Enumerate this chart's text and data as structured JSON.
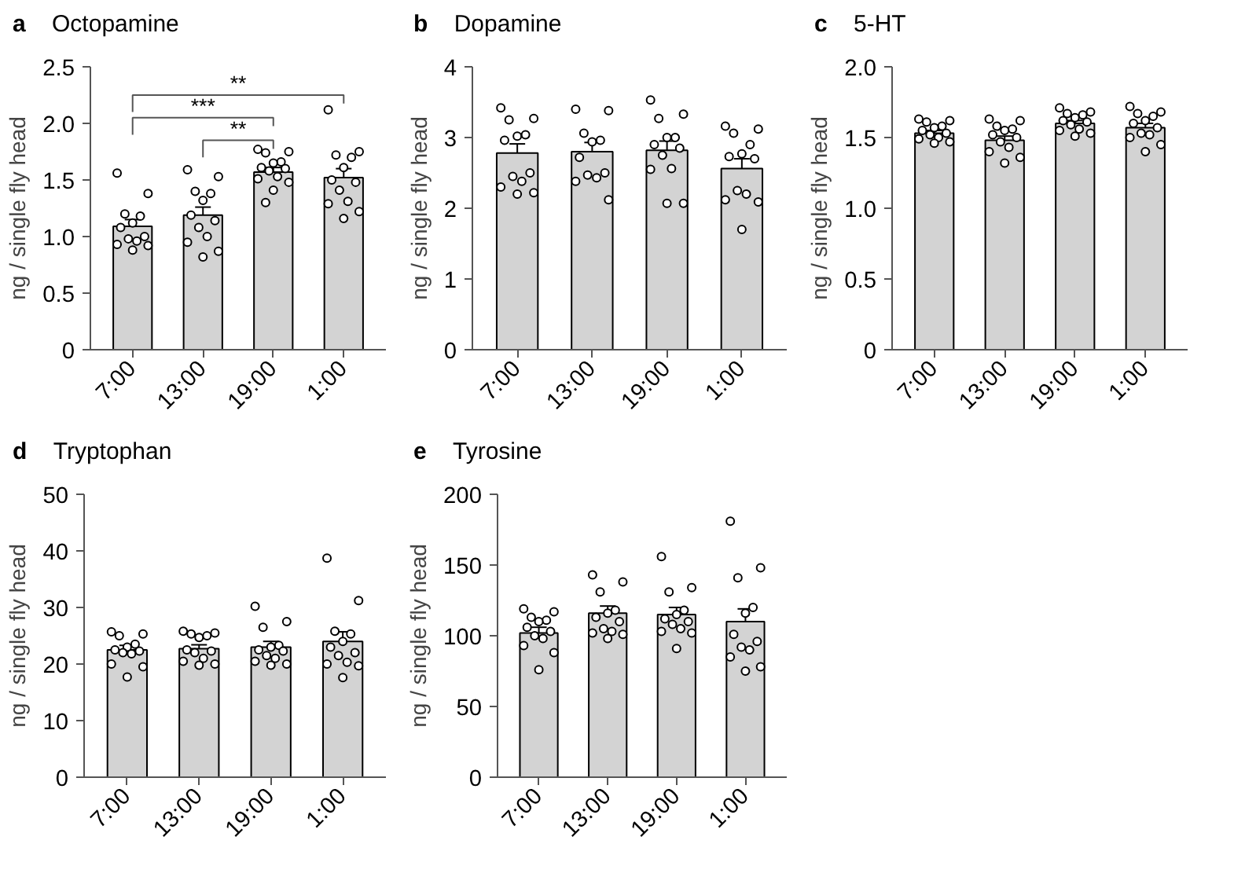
{
  "chart_data": [
    {
      "type": "bar",
      "title": "a",
      "subtitle": "Octopamine",
      "ylabel": "ng / single fly head",
      "categories": [
        "7:00",
        "13:00",
        "19:00",
        "1:00"
      ],
      "ylim": [
        0,
        2.5
      ],
      "yticks": [
        0,
        {
          "value": 0.5,
          "label": "0.5"
        },
        {
          "value": 1,
          "label": "1.0"
        },
        {
          "value": 1.5,
          "label": "1.5"
        },
        {
          "value": 2,
          "label": "2.0"
        },
        {
          "value": 2.5,
          "label": "2.5"
        }
      ],
      "grid": false,
      "annotations": [
        "**",
        "***",
        "**"
      ],
      "series": [
        {
          "color": "#d3d3d3",
          "values": [
            1.09,
            1.19,
            1.57,
            1.52
          ],
          "errors": [
            0.06,
            0.07,
            0.04,
            0.08
          ]
        },
        {
          "type": "scatter",
          "marker": "circle",
          "color": "#000000",
          "x": [
            "7:00",
            "7:00",
            "7:00",
            "7:00",
            "7:00",
            "7:00",
            "7:00",
            "7:00",
            "7:00",
            "7:00",
            "7:00",
            "7:00",
            "13:00",
            "13:00",
            "13:00",
            "13:00",
            "13:00",
            "13:00",
            "13:00",
            "13:00",
            "13:00",
            "13:00",
            "13:00",
            "13:00",
            "19:00",
            "19:00",
            "19:00",
            "19:00",
            "19:00",
            "19:00",
            "19:00",
            "19:00",
            "19:00",
            "19:00",
            "19:00",
            "19:00",
            "19:00",
            "1:00",
            "1:00",
            "1:00",
            "1:00",
            "1:00",
            "1:00",
            "1:00",
            "1:00",
            "1:00",
            "1:00",
            "1:00",
            "1:00"
          ],
          "values": [
            1.56,
            1.38,
            1.2,
            1.18,
            1.12,
            1.08,
            1.0,
            0.98,
            0.96,
            0.93,
            0.92,
            0.88,
            1.59,
            1.53,
            1.4,
            1.38,
            1.32,
            1.19,
            1.14,
            1.08,
            1.0,
            0.95,
            0.87,
            0.82,
            1.77,
            1.75,
            1.74,
            1.66,
            1.65,
            1.61,
            1.6,
            1.58,
            1.53,
            1.51,
            1.48,
            1.41,
            1.3,
            2.12,
            1.75,
            1.72,
            1.7,
            1.61,
            1.5,
            1.48,
            1.41,
            1.31,
            1.29,
            1.22,
            1.16
          ]
        }
      ]
    },
    {
      "type": "bar",
      "title": "b",
      "subtitle": "Dopamine",
      "ylabel": "ng / single fly head",
      "categories": [
        "7:00",
        "13:00",
        "19:00",
        "1:00"
      ],
      "ylim": [
        0,
        4
      ],
      "yticks": [
        0,
        1,
        2,
        3,
        4
      ],
      "grid": false,
      "series": [
        {
          "color": "#d3d3d3",
          "values": [
            2.78,
            2.8,
            2.82,
            2.56
          ],
          "errors": [
            0.13,
            0.13,
            0.13,
            0.14
          ]
        },
        {
          "type": "scatter",
          "marker": "circle",
          "color": "#000000",
          "x": [
            "7:00",
            "7:00",
            "7:00",
            "7:00",
            "7:00",
            "7:00",
            "7:00",
            "7:00",
            "7:00",
            "7:00",
            "7:00",
            "7:00",
            "13:00",
            "13:00",
            "13:00",
            "13:00",
            "13:00",
            "13:00",
            "13:00",
            "13:00",
            "13:00",
            "13:00",
            "13:00",
            "19:00",
            "19:00",
            "19:00",
            "19:00",
            "19:00",
            "19:00",
            "19:00",
            "19:00",
            "19:00",
            "19:00",
            "19:00",
            "19:00",
            "1:00",
            "1:00",
            "1:00",
            "1:00",
            "1:00",
            "1:00",
            "1:00",
            "1:00",
            "1:00",
            "1:00",
            "1:00",
            "1:00"
          ],
          "values": [
            3.42,
            3.27,
            3.25,
            3.04,
            3.02,
            2.96,
            2.5,
            2.45,
            2.38,
            2.3,
            2.22,
            2.2,
            3.4,
            3.38,
            3.06,
            2.96,
            2.94,
            2.72,
            2.5,
            2.47,
            2.43,
            2.38,
            2.12,
            3.53,
            3.33,
            3.27,
            3.0,
            3.0,
            2.9,
            2.85,
            2.75,
            2.56,
            2.55,
            2.07,
            2.07,
            3.16,
            3.12,
            3.06,
            2.9,
            2.77,
            2.73,
            2.7,
            2.25,
            2.2,
            2.12,
            2.09,
            1.7
          ]
        }
      ]
    },
    {
      "type": "bar",
      "title": "c",
      "subtitle": "5-HT",
      "ylabel": "ng / single fly head",
      "categories": [
        "7:00",
        "13:00",
        "19:00",
        "1:00"
      ],
      "ylim": [
        0,
        2
      ],
      "yticks": [
        0,
        {
          "value": 0.5,
          "label": "0.5"
        },
        {
          "value": 1,
          "label": "1.0"
        },
        {
          "value": 1.5,
          "label": "1.5"
        },
        {
          "value": 2,
          "label": "2.0"
        }
      ],
      "grid": false,
      "series": [
        {
          "color": "#d3d3d3",
          "values": [
            1.53,
            1.48,
            1.6,
            1.57
          ],
          "errors": [
            0.02,
            0.03,
            0.02,
            0.03
          ]
        },
        {
          "type": "scatter",
          "marker": "circle",
          "color": "#000000",
          "x": [
            "7:00",
            "7:00",
            "7:00",
            "7:00",
            "7:00",
            "7:00",
            "7:00",
            "7:00",
            "7:00",
            "7:00",
            "7:00",
            "7:00",
            "13:00",
            "13:00",
            "13:00",
            "13:00",
            "13:00",
            "13:00",
            "13:00",
            "13:00",
            "13:00",
            "13:00",
            "13:00",
            "13:00",
            "19:00",
            "19:00",
            "19:00",
            "19:00",
            "19:00",
            "19:00",
            "19:00",
            "19:00",
            "19:00",
            "19:00",
            "19:00",
            "19:00",
            "1:00",
            "1:00",
            "1:00",
            "1:00",
            "1:00",
            "1:00",
            "1:00",
            "1:00",
            "1:00",
            "1:00",
            "1:00",
            "1:00"
          ],
          "values": [
            1.63,
            1.62,
            1.61,
            1.58,
            1.57,
            1.55,
            1.53,
            1.52,
            1.5,
            1.49,
            1.47,
            1.46,
            1.63,
            1.62,
            1.58,
            1.56,
            1.55,
            1.52,
            1.5,
            1.47,
            1.43,
            1.4,
            1.36,
            1.32,
            1.71,
            1.68,
            1.67,
            1.66,
            1.64,
            1.62,
            1.61,
            1.59,
            1.56,
            1.55,
            1.53,
            1.51,
            1.72,
            1.68,
            1.67,
            1.65,
            1.62,
            1.6,
            1.57,
            1.53,
            1.52,
            1.5,
            1.45,
            1.4
          ]
        }
      ]
    },
    {
      "type": "bar",
      "title": "d",
      "subtitle": "Tryptophan",
      "ylabel": "ng / single fly head",
      "categories": [
        "7:00",
        "13:00",
        "19:00",
        "1:00"
      ],
      "ylim": [
        0,
        50
      ],
      "yticks": [
        0,
        10,
        20,
        30,
        40,
        50
      ],
      "grid": false,
      "series": [
        {
          "color": "#d3d3d3",
          "values": [
            22.5,
            22.7,
            23.0,
            24.0
          ],
          "errors": [
            0.8,
            0.7,
            1.0,
            1.7
          ]
        },
        {
          "type": "scatter",
          "marker": "circle",
          "color": "#000000",
          "x": [
            "7:00",
            "7:00",
            "7:00",
            "7:00",
            "7:00",
            "7:00",
            "7:00",
            "7:00",
            "7:00",
            "7:00",
            "7:00",
            "7:00",
            "13:00",
            "13:00",
            "13:00",
            "13:00",
            "13:00",
            "13:00",
            "13:00",
            "13:00",
            "13:00",
            "13:00",
            "13:00",
            "13:00",
            "19:00",
            "19:00",
            "19:00",
            "19:00",
            "19:00",
            "19:00",
            "19:00",
            "19:00",
            "19:00",
            "19:00",
            "19:00",
            "19:00",
            "1:00",
            "1:00",
            "1:00",
            "1:00",
            "1:00",
            "1:00",
            "1:00",
            "1:00",
            "1:00",
            "1:00",
            "1:00",
            "1:00"
          ],
          "values": [
            25.7,
            25.3,
            25.0,
            23.5,
            23.0,
            22.5,
            22.3,
            22.0,
            21.8,
            20.0,
            19.5,
            17.7,
            25.8,
            25.5,
            25.3,
            25.0,
            24.7,
            22.5,
            22.3,
            22.0,
            21.0,
            20.5,
            20.0,
            19.8,
            30.2,
            27.5,
            26.5,
            23.3,
            23.0,
            22.5,
            22.3,
            21.5,
            21.0,
            20.5,
            20.0,
            19.8,
            38.7,
            31.2,
            25.8,
            25.3,
            24.0,
            23.0,
            22.0,
            21.5,
            20.3,
            20.0,
            19.7,
            17.6
          ]
        }
      ]
    },
    {
      "type": "bar",
      "title": "e",
      "subtitle": "Tyrosine",
      "ylabel": "ng / single fly head",
      "categories": [
        "7:00",
        "13:00",
        "19:00",
        "1:00"
      ],
      "ylim": [
        0,
        200
      ],
      "yticks": [
        0,
        50,
        100,
        150,
        200
      ],
      "grid": false,
      "series": [
        {
          "color": "#d3d3d3",
          "values": [
            102,
            116,
            115,
            110
          ],
          "errors": [
            4,
            5,
            5,
            9
          ]
        },
        {
          "type": "scatter",
          "marker": "circle",
          "color": "#000000",
          "x": [
            "7:00",
            "7:00",
            "7:00",
            "7:00",
            "7:00",
            "7:00",
            "7:00",
            "7:00",
            "7:00",
            "7:00",
            "7:00",
            "7:00",
            "13:00",
            "13:00",
            "13:00",
            "13:00",
            "13:00",
            "13:00",
            "13:00",
            "13:00",
            "13:00",
            "13:00",
            "13:00",
            "13:00",
            "19:00",
            "19:00",
            "19:00",
            "19:00",
            "19:00",
            "19:00",
            "19:00",
            "19:00",
            "19:00",
            "19:00",
            "19:00",
            "19:00",
            "1:00",
            "1:00",
            "1:00",
            "1:00",
            "1:00",
            "1:00",
            "1:00",
            "1:00",
            "1:00",
            "1:00",
            "1:00",
            "1:00"
          ],
          "values": [
            119,
            117,
            113,
            111,
            110,
            106,
            103,
            100,
            98,
            93,
            88,
            76,
            143,
            138,
            131,
            118,
            116,
            113,
            110,
            105,
            103,
            102,
            101,
            98,
            156,
            134,
            131,
            118,
            115,
            112,
            110,
            108,
            105,
            103,
            102,
            91,
            181,
            148,
            141,
            120,
            116,
            101,
            96,
            92,
            90,
            85,
            78,
            75
          ]
        }
      ]
    }
  ]
}
